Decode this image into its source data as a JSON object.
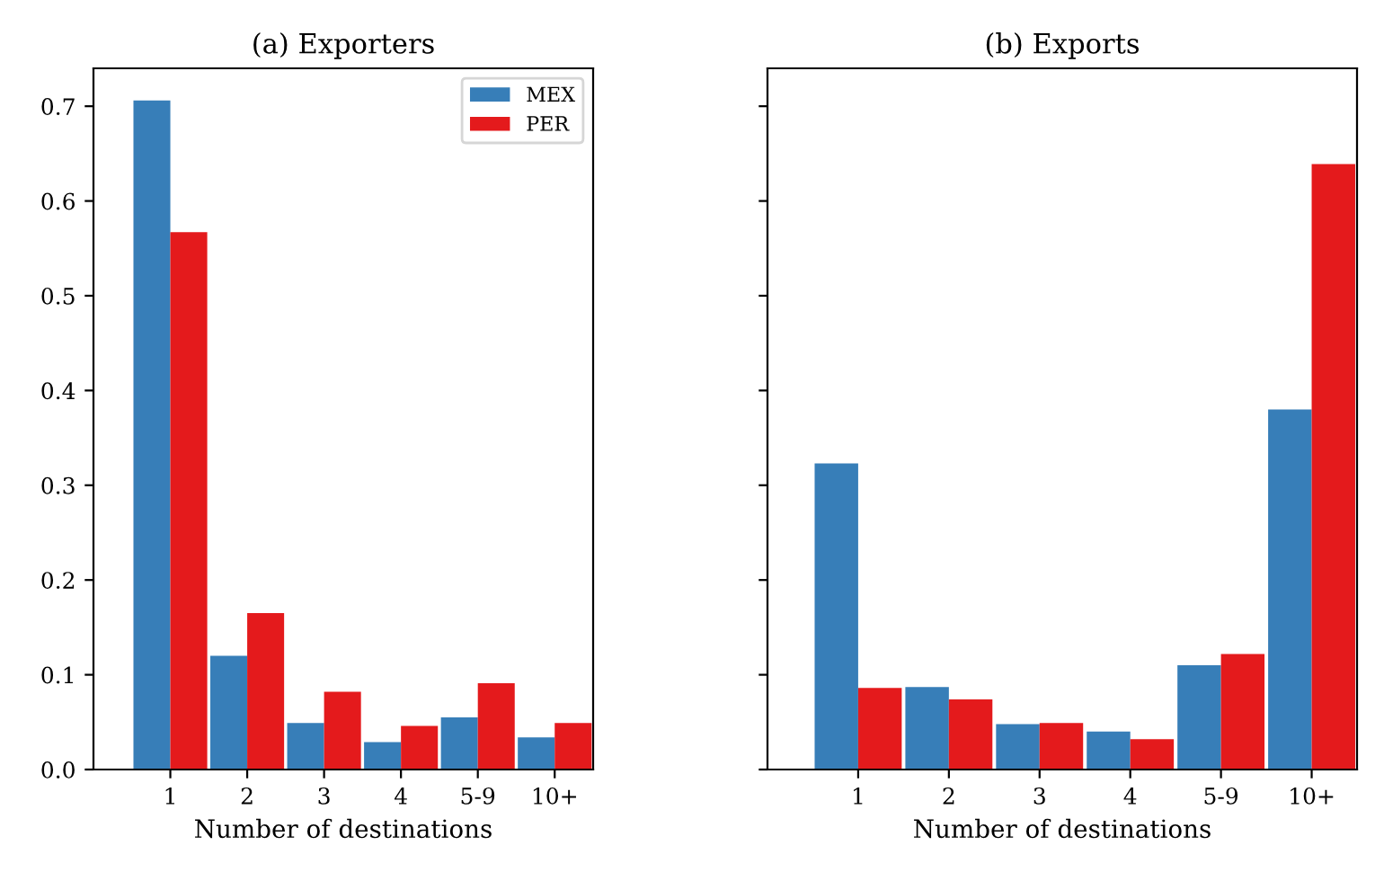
{
  "chart_data": [
    {
      "type": "bar",
      "title": "(a) Exporters",
      "xlabel": "Number of destinations",
      "categories": [
        "1",
        "2",
        "3",
        "4",
        "5-9",
        "10+"
      ],
      "series": [
        {
          "name": "MEX",
          "color": "#377eb8",
          "values": [
            0.706,
            0.12,
            0.049,
            0.029,
            0.055,
            0.034
          ]
        },
        {
          "name": "PER",
          "color": "#e41a1c",
          "values": [
            0.567,
            0.165,
            0.082,
            0.046,
            0.091,
            0.049
          ]
        }
      ],
      "ylim": [
        0,
        0.74
      ],
      "yticks": [
        {
          "value": 0,
          "label": "0.0"
        },
        0.1,
        0.2,
        0.3,
        0.4,
        0.5,
        0.6,
        0.7
      ],
      "legend": "top right",
      "grid": false
    },
    {
      "type": "bar",
      "title": "(b) Exports",
      "xlabel": "Number of destinations",
      "categories": [
        "1",
        "2",
        "3",
        "4",
        "5-9",
        "10+"
      ],
      "series": [
        {
          "color": "#377eb8",
          "values": [
            0.323,
            0.087,
            0.048,
            0.04,
            0.11,
            0.38
          ]
        },
        {
          "color": "#e41a1c",
          "values": [
            0.086,
            0.074,
            0.049,
            0.032,
            0.122,
            0.639
          ]
        }
      ],
      "ylim": [
        0,
        0.74
      ],
      "yticks": [
        0,
        0.1,
        0.2,
        0.3,
        0.4,
        0.5,
        0.6,
        0.7
      ],
      "tick_labels": "x",
      "grid": false
    }
  ]
}
